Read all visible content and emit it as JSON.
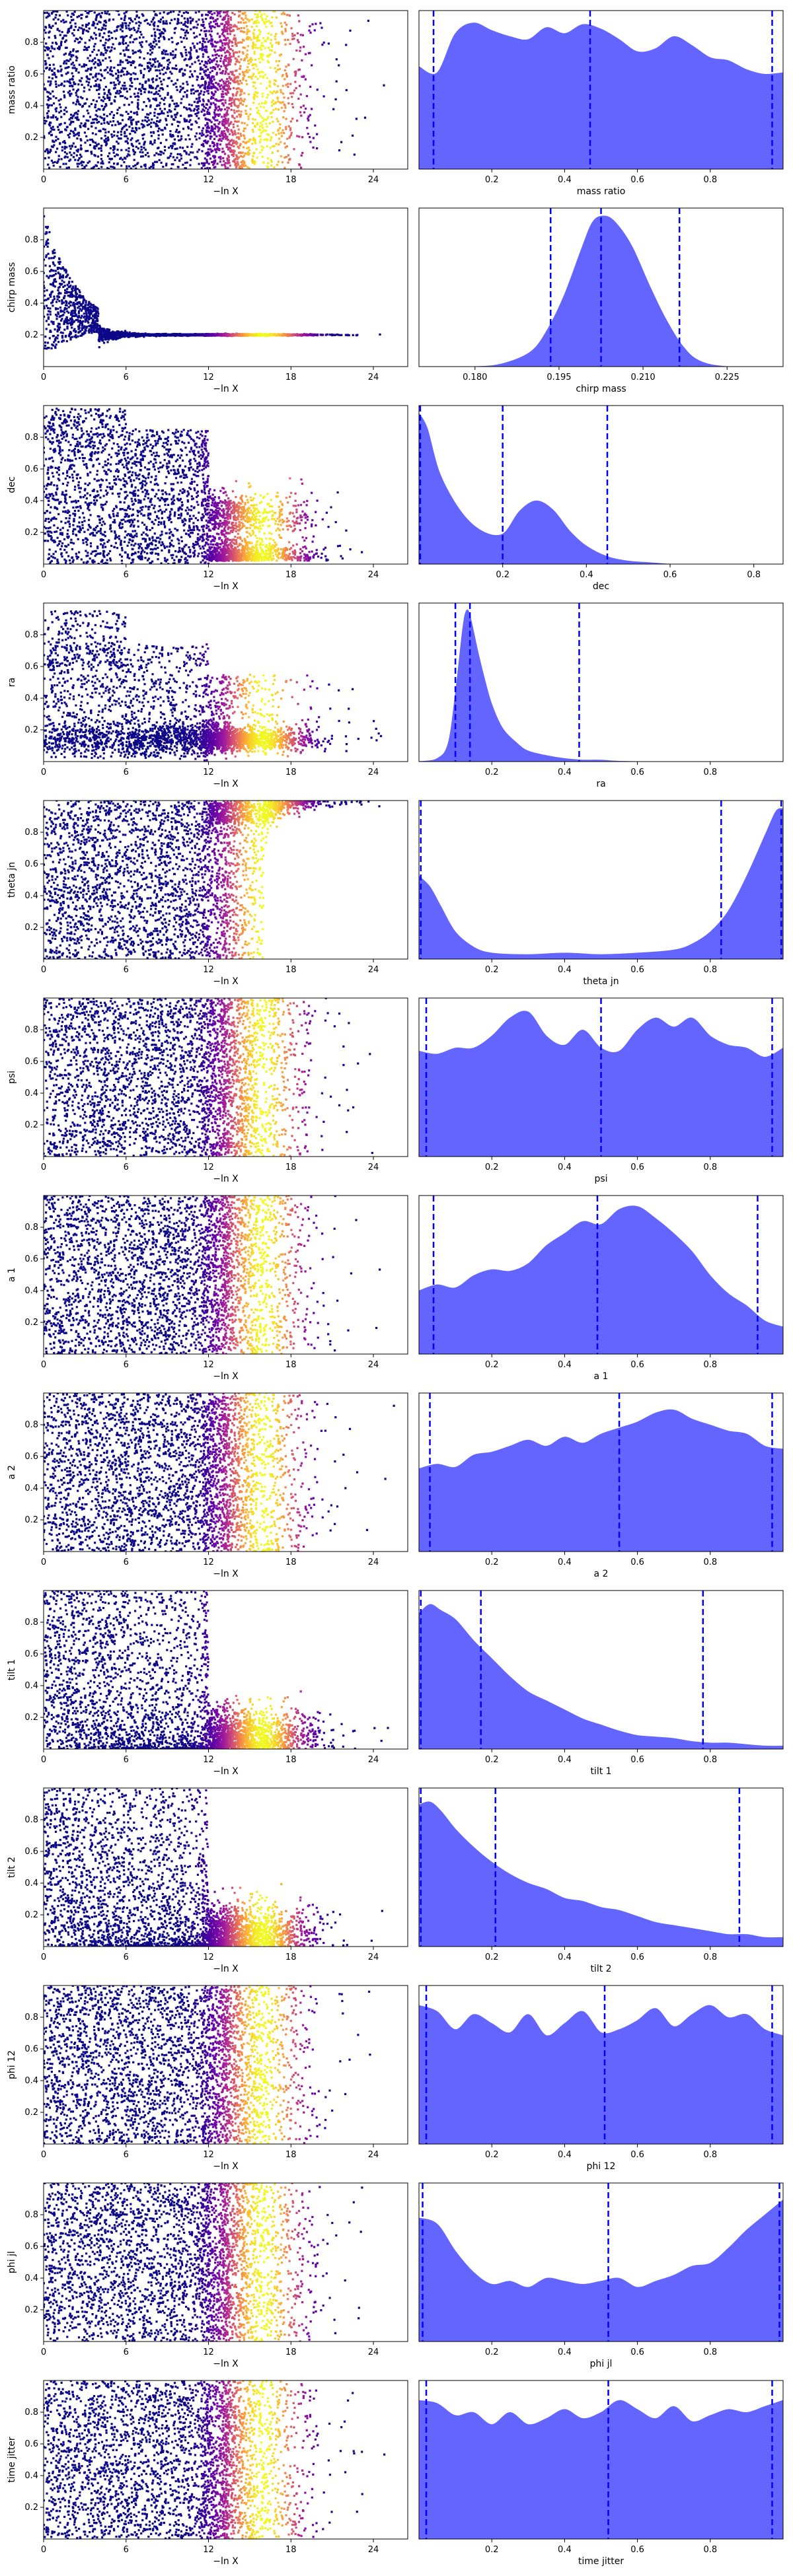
{
  "chart_data": {
    "type": "trace-plot",
    "trace_xlabel": "−ln X",
    "trace_xticks": [
      0,
      6,
      12,
      18,
      24
    ],
    "trace_xlim": [
      0,
      26.5
    ],
    "trace_yticks": [
      0.2,
      0.4,
      0.6,
      0.8
    ],
    "colormap": [
      "#0d0887",
      "#5c01a6",
      "#9c179e",
      "#cc4778",
      "#ed7953",
      "#fdb42f",
      "#f0f921"
    ],
    "posterior_color": "#6464ff",
    "quantile_line_color": "#0000ff",
    "parameters": [
      {
        "name": "mass ratio",
        "xlim": [
          0,
          1
        ],
        "ticks": [
          0.2,
          0.4,
          0.6,
          0.8
        ],
        "tick_labels": [
          "0.2",
          "0.4",
          "0.6",
          "0.8"
        ],
        "quantiles": [
          0.04,
          0.47,
          0.97
        ],
        "kde_x": [
          0,
          0.05,
          0.1,
          0.15,
          0.2,
          0.25,
          0.3,
          0.35,
          0.4,
          0.45,
          0.5,
          0.55,
          0.6,
          0.65,
          0.7,
          0.75,
          0.8,
          0.85,
          0.9,
          0.95,
          1.0
        ],
        "kde_y": [
          0.68,
          0.64,
          0.9,
          0.97,
          0.92,
          0.88,
          0.86,
          0.94,
          0.9,
          0.96,
          0.93,
          0.86,
          0.78,
          0.8,
          0.88,
          0.82,
          0.74,
          0.72,
          0.66,
          0.63,
          0.64
        ],
        "trace_mode": "uniform"
      },
      {
        "name": "chirp mass",
        "xlim": [
          0.17,
          0.235
        ],
        "ticks": [
          0.18,
          0.195,
          0.21,
          0.225
        ],
        "tick_labels": [
          "0.180",
          "0.195",
          "0.210",
          "0.225"
        ],
        "quantiles": [
          0.1935,
          0.2025,
          0.2165
        ],
        "kde_x": [
          0.17,
          0.18,
          0.185,
          0.19,
          0.193,
          0.196,
          0.199,
          0.201,
          0.203,
          0.205,
          0.208,
          0.211,
          0.214,
          0.217,
          0.22,
          0.225,
          0.235
        ],
        "kde_y": [
          0,
          0,
          0.02,
          0.1,
          0.25,
          0.48,
          0.78,
          0.96,
          1.0,
          0.96,
          0.8,
          0.55,
          0.32,
          0.14,
          0.04,
          0.0,
          0
        ],
        "trace_mode": "converge",
        "converge_value": 0.2
      },
      {
        "name": "dec",
        "xlim": [
          0,
          0.87
        ],
        "ticks": [
          0.2,
          0.4,
          0.6,
          0.8
        ],
        "tick_labels": [
          "0.2",
          "0.4",
          "0.6",
          "0.8"
        ],
        "quantiles": [
          0.003,
          0.2,
          0.45
        ],
        "kde_x": [
          0,
          0.02,
          0.05,
          0.1,
          0.15,
          0.2,
          0.24,
          0.28,
          0.32,
          0.36,
          0.4,
          0.45,
          0.5,
          0.55,
          0.6,
          0.65,
          0.7,
          0.87
        ],
        "kde_y": [
          1.0,
          0.9,
          0.6,
          0.35,
          0.22,
          0.2,
          0.35,
          0.42,
          0.36,
          0.22,
          0.12,
          0.05,
          0.02,
          0.01,
          0.0,
          0,
          0,
          0
        ],
        "trace_mode": "dec"
      },
      {
        "name": "ra",
        "xlim": [
          0,
          1
        ],
        "ticks": [
          0.2,
          0.4,
          0.6,
          0.8
        ],
        "tick_labels": [
          "0.2",
          "0.4",
          "0.6",
          "0.8"
        ],
        "quantiles": [
          0.1,
          0.14,
          0.44
        ],
        "kde_x": [
          0,
          0.05,
          0.08,
          0.1,
          0.12,
          0.13,
          0.14,
          0.16,
          0.18,
          0.2,
          0.23,
          0.27,
          0.3,
          0.35,
          0.4,
          0.45,
          0.5,
          0.6,
          1.0
        ],
        "kde_y": [
          0,
          0.02,
          0.12,
          0.45,
          0.88,
          1.0,
          0.97,
          0.75,
          0.55,
          0.38,
          0.22,
          0.12,
          0.07,
          0.04,
          0.02,
          0.01,
          0.01,
          0,
          0
        ],
        "trace_mode": "ra"
      },
      {
        "name": "theta jn",
        "xlim": [
          0,
          1
        ],
        "ticks": [
          0.2,
          0.4,
          0.6,
          0.8
        ],
        "tick_labels": [
          "0.2",
          "0.4",
          "0.6",
          "0.8"
        ],
        "quantiles": [
          0.005,
          0.83,
          0.995
        ],
        "kde_x": [
          0,
          0.03,
          0.06,
          0.1,
          0.15,
          0.2,
          0.3,
          0.4,
          0.5,
          0.6,
          0.7,
          0.75,
          0.8,
          0.85,
          0.9,
          0.95,
          0.98,
          1.0
        ],
        "kde_y": [
          0.55,
          0.48,
          0.35,
          0.18,
          0.08,
          0.04,
          0.03,
          0.04,
          0.03,
          0.04,
          0.06,
          0.1,
          0.18,
          0.32,
          0.55,
          0.82,
          0.98,
          1.0
        ],
        "trace_mode": "theta"
      },
      {
        "name": "psi",
        "xlim": [
          0,
          1
        ],
        "ticks": [
          0.2,
          0.4,
          0.6,
          0.8
        ],
        "tick_labels": [
          "0.2",
          "0.4",
          "0.6",
          "0.8"
        ],
        "quantiles": [
          0.02,
          0.5,
          0.97
        ],
        "kde_x": [
          0,
          0.05,
          0.1,
          0.15,
          0.2,
          0.25,
          0.3,
          0.35,
          0.4,
          0.45,
          0.5,
          0.55,
          0.6,
          0.65,
          0.7,
          0.75,
          0.8,
          0.85,
          0.9,
          0.95,
          1.0
        ],
        "kde_y": [
          0.7,
          0.68,
          0.72,
          0.72,
          0.8,
          0.92,
          0.96,
          0.8,
          0.74,
          0.84,
          0.72,
          0.7,
          0.84,
          0.92,
          0.86,
          0.92,
          0.8,
          0.74,
          0.72,
          0.66,
          0.72
        ],
        "trace_mode": "uniform"
      },
      {
        "name": "a 1",
        "xlim": [
          0,
          1
        ],
        "ticks": [
          0.2,
          0.4,
          0.6,
          0.8
        ],
        "tick_labels": [
          "0.2",
          "0.4",
          "0.6",
          "0.8"
        ],
        "quantiles": [
          0.04,
          0.49,
          0.93
        ],
        "kde_x": [
          0,
          0.05,
          0.1,
          0.15,
          0.2,
          0.25,
          0.3,
          0.35,
          0.4,
          0.45,
          0.5,
          0.55,
          0.6,
          0.65,
          0.7,
          0.75,
          0.8,
          0.85,
          0.9,
          0.95,
          1.0
        ],
        "kde_y": [
          0.42,
          0.46,
          0.44,
          0.52,
          0.56,
          0.55,
          0.6,
          0.72,
          0.8,
          0.88,
          0.86,
          0.96,
          0.98,
          0.9,
          0.8,
          0.68,
          0.52,
          0.4,
          0.32,
          0.22,
          0.18
        ],
        "trace_mode": "uniform"
      },
      {
        "name": "a 2",
        "xlim": [
          0,
          1
        ],
        "ticks": [
          0.2,
          0.4,
          0.6,
          0.8
        ],
        "tick_labels": [
          "0.2",
          "0.4",
          "0.6",
          "0.8"
        ],
        "quantiles": [
          0.03,
          0.55,
          0.97
        ],
        "kde_x": [
          0,
          0.05,
          0.1,
          0.15,
          0.2,
          0.25,
          0.3,
          0.35,
          0.4,
          0.45,
          0.5,
          0.55,
          0.6,
          0.65,
          0.7,
          0.75,
          0.8,
          0.85,
          0.9,
          0.95,
          1.0
        ],
        "kde_y": [
          0.55,
          0.58,
          0.56,
          0.64,
          0.66,
          0.7,
          0.74,
          0.7,
          0.76,
          0.72,
          0.78,
          0.82,
          0.86,
          0.92,
          0.94,
          0.88,
          0.84,
          0.8,
          0.78,
          0.7,
          0.68
        ],
        "trace_mode": "uniform"
      },
      {
        "name": "tilt 1",
        "xlim": [
          0,
          1
        ],
        "ticks": [
          0.2,
          0.4,
          0.6,
          0.8
        ],
        "tick_labels": [
          "0.2",
          "0.4",
          "0.6",
          "0.8"
        ],
        "quantiles": [
          0.005,
          0.17,
          0.78
        ],
        "kde_x": [
          0,
          0.03,
          0.06,
          0.1,
          0.15,
          0.2,
          0.25,
          0.3,
          0.35,
          0.4,
          0.45,
          0.5,
          0.55,
          0.6,
          0.65,
          0.7,
          0.75,
          0.8,
          0.85,
          0.9,
          0.95,
          1.0
        ],
        "kde_y": [
          0.9,
          0.96,
          0.92,
          0.86,
          0.72,
          0.6,
          0.48,
          0.38,
          0.32,
          0.26,
          0.2,
          0.16,
          0.12,
          0.09,
          0.08,
          0.07,
          0.05,
          0.04,
          0.04,
          0.03,
          0.02,
          0.02
        ],
        "trace_mode": "tilt"
      },
      {
        "name": "tilt 2",
        "xlim": [
          0,
          1
        ],
        "ticks": [
          0.2,
          0.4,
          0.6,
          0.8
        ],
        "tick_labels": [
          "0.2",
          "0.4",
          "0.6",
          "0.8"
        ],
        "quantiles": [
          0.005,
          0.21,
          0.88
        ],
        "kde_x": [
          0,
          0.03,
          0.06,
          0.1,
          0.15,
          0.2,
          0.25,
          0.3,
          0.35,
          0.4,
          0.45,
          0.5,
          0.55,
          0.6,
          0.65,
          0.7,
          0.75,
          0.8,
          0.85,
          0.9,
          0.95,
          1.0
        ],
        "kde_y": [
          0.94,
          0.96,
          0.9,
          0.78,
          0.66,
          0.56,
          0.48,
          0.42,
          0.38,
          0.32,
          0.3,
          0.26,
          0.24,
          0.2,
          0.16,
          0.14,
          0.12,
          0.1,
          0.08,
          0.08,
          0.06,
          0.06
        ],
        "trace_mode": "tilt"
      },
      {
        "name": "phi 12",
        "xlim": [
          0,
          1
        ],
        "ticks": [
          0.2,
          0.4,
          0.6,
          0.8
        ],
        "tick_labels": [
          "0.2",
          "0.4",
          "0.6",
          "0.8"
        ],
        "quantiles": [
          0.02,
          0.51,
          0.97
        ],
        "kde_x": [
          0,
          0.05,
          0.1,
          0.15,
          0.2,
          0.25,
          0.3,
          0.35,
          0.4,
          0.45,
          0.5,
          0.55,
          0.6,
          0.65,
          0.7,
          0.75,
          0.8,
          0.85,
          0.9,
          0.95,
          1.0
        ],
        "kde_y": [
          0.92,
          0.88,
          0.76,
          0.86,
          0.8,
          0.74,
          0.86,
          0.72,
          0.8,
          0.88,
          0.74,
          0.76,
          0.82,
          0.9,
          0.78,
          0.86,
          0.92,
          0.84,
          0.86,
          0.76,
          0.72
        ],
        "trace_mode": "uniform"
      },
      {
        "name": "phi jl",
        "xlim": [
          0,
          1
        ],
        "ticks": [
          0.2,
          0.4,
          0.6,
          0.8
        ],
        "tick_labels": [
          "0.2",
          "0.4",
          "0.6",
          "0.8"
        ],
        "quantiles": [
          0.01,
          0.52,
          0.99
        ],
        "kde_x": [
          0,
          0.05,
          0.1,
          0.15,
          0.2,
          0.25,
          0.3,
          0.35,
          0.4,
          0.45,
          0.5,
          0.55,
          0.6,
          0.65,
          0.7,
          0.75,
          0.8,
          0.85,
          0.9,
          0.95,
          1.0
        ],
        "kde_y": [
          0.82,
          0.78,
          0.6,
          0.46,
          0.38,
          0.4,
          0.36,
          0.42,
          0.4,
          0.38,
          0.4,
          0.42,
          0.36,
          0.4,
          0.44,
          0.5,
          0.52,
          0.62,
          0.74,
          0.84,
          0.94
        ],
        "trace_mode": "uniform"
      },
      {
        "name": "time jitter",
        "xlim": [
          0,
          1
        ],
        "ticks": [
          0.2,
          0.4,
          0.6,
          0.8
        ],
        "tick_labels": [
          "0.2",
          "0.4",
          "0.6",
          "0.8"
        ],
        "quantiles": [
          0.02,
          0.52,
          0.97
        ],
        "kde_x": [
          0,
          0.05,
          0.1,
          0.15,
          0.2,
          0.25,
          0.3,
          0.35,
          0.4,
          0.45,
          0.5,
          0.55,
          0.6,
          0.65,
          0.7,
          0.75,
          0.8,
          0.85,
          0.9,
          0.95,
          1.0
        ],
        "kde_y": [
          0.92,
          0.9,
          0.82,
          0.84,
          0.76,
          0.84,
          0.76,
          0.8,
          0.86,
          0.8,
          0.84,
          0.92,
          0.86,
          0.8,
          0.88,
          0.78,
          0.82,
          0.86,
          0.84,
          0.88,
          0.92
        ],
        "trace_mode": "uniform"
      }
    ]
  }
}
